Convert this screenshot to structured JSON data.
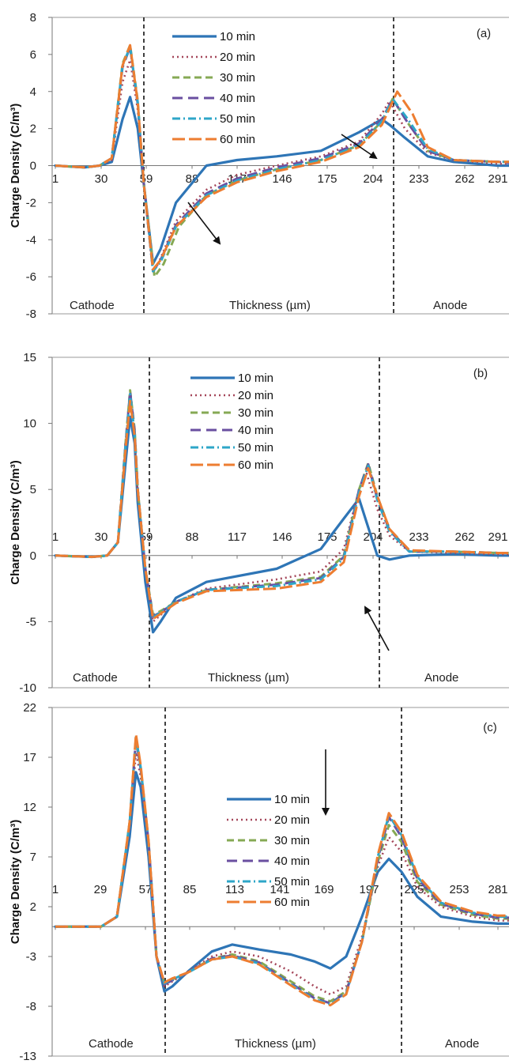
{
  "chart_data": [
    {
      "type": "line",
      "panel_label": "(a)",
      "ylabel": "Charge Density (C/m³)",
      "xlabel": "Thickness (µm)",
      "ylim": [
        -8,
        8
      ],
      "yticks": [
        "8",
        "6",
        "4",
        "2",
        "0",
        "-2",
        "-4",
        "-6",
        "-8"
      ],
      "xticks": [
        "1",
        "30",
        "59",
        "88",
        "117",
        "146",
        "175",
        "204",
        "233",
        "262",
        "291"
      ],
      "region_labels": {
        "left": "Cathode",
        "right": "Anode"
      },
      "series": [
        {
          "name": "10 min",
          "x": [
            1,
            20,
            30,
            38,
            45,
            50,
            55,
            59,
            65,
            70,
            80,
            100,
            120,
            146,
            175,
            200,
            215,
            220,
            230,
            245,
            262,
            291,
            303
          ],
          "y": [
            0,
            -0.1,
            0,
            0.2,
            2.5,
            3.7,
            2,
            -1,
            -5.3,
            -4.5,
            -2,
            0,
            0.3,
            0.5,
            0.8,
            1.8,
            2.5,
            2.2,
            1.5,
            0.5,
            0.2,
            0,
            0
          ]
        },
        {
          "name": "20 min",
          "x": [
            1,
            20,
            30,
            38,
            45,
            50,
            55,
            59,
            65,
            70,
            80,
            100,
            120,
            146,
            175,
            200,
            215,
            220,
            230,
            245,
            262,
            291,
            303
          ],
          "y": [
            0,
            -0.1,
            0,
            0.3,
            4.5,
            5.7,
            3,
            -1,
            -5.8,
            -5,
            -3,
            -1.3,
            -0.5,
            0,
            0.5,
            1.3,
            2.8,
            3.5,
            2,
            0.7,
            0.3,
            0.1,
            0.1
          ]
        },
        {
          "name": "30 min",
          "x": [
            1,
            20,
            30,
            38,
            45,
            50,
            55,
            59,
            66,
            72,
            82,
            100,
            120,
            146,
            175,
            200,
            215,
            222,
            232,
            245,
            262,
            291,
            303
          ],
          "y": [
            0,
            -0.1,
            0,
            0.4,
            5.5,
            6.5,
            3.5,
            -1,
            -6,
            -5.3,
            -3.3,
            -1.6,
            -0.8,
            -0.2,
            0.3,
            1.1,
            2.4,
            3.6,
            2.3,
            0.8,
            0.3,
            0.2,
            0.2
          ]
        },
        {
          "name": "40 min",
          "x": [
            1,
            20,
            30,
            38,
            45,
            50,
            55,
            59,
            65,
            70,
            80,
            100,
            120,
            146,
            175,
            200,
            215,
            222,
            232,
            245,
            262,
            291,
            303
          ],
          "y": [
            0,
            -0.1,
            0,
            0.4,
            5.3,
            6.4,
            3.3,
            -1,
            -5.7,
            -5.1,
            -3.2,
            -1.5,
            -0.7,
            -0.1,
            0.4,
            1.2,
            2.5,
            3.6,
            2.3,
            0.8,
            0.3,
            0.2,
            0.1
          ]
        },
        {
          "name": "50 min",
          "x": [
            1,
            20,
            30,
            38,
            45,
            50,
            55,
            59,
            65,
            70,
            80,
            100,
            120,
            146,
            175,
            200,
            215,
            222,
            232,
            245,
            262,
            291,
            303
          ],
          "y": [
            0,
            -0.1,
            0,
            0.4,
            5.4,
            6.4,
            3.4,
            -1,
            -5.7,
            -5.2,
            -3.3,
            -1.6,
            -0.8,
            -0.2,
            0.3,
            1.1,
            2.4,
            3.6,
            2.5,
            0.9,
            0.3,
            0.2,
            0.2
          ]
        },
        {
          "name": "60 min",
          "x": [
            1,
            20,
            30,
            38,
            45,
            50,
            55,
            59,
            65,
            70,
            80,
            100,
            120,
            146,
            175,
            200,
            215,
            225,
            235,
            245,
            262,
            291,
            303
          ],
          "y": [
            0,
            -0.1,
            0,
            0.4,
            5.4,
            6.5,
            3.4,
            -1,
            -5.6,
            -5.1,
            -3.3,
            -1.7,
            -0.9,
            -0.3,
            0.2,
            1,
            2.2,
            4,
            2.8,
            1,
            0.3,
            0.2,
            0.2
          ]
        }
      ]
    },
    {
      "type": "line",
      "panel_label": "(b)",
      "ylabel": "Charge Density (C/m³)",
      "xlabel": "Thickness (µm)",
      "ylim": [
        -10,
        15
      ],
      "yticks": [
        "15",
        "10",
        "5",
        "0",
        "-5",
        "-10"
      ],
      "xticks": [
        "1",
        "30",
        "59",
        "88",
        "117",
        "146",
        "175",
        "204",
        "233",
        "262",
        "291"
      ],
      "region_labels": {
        "left": "Cathode",
        "right": "Anode"
      },
      "series": [
        {
          "name": "10 min",
          "x": [
            1,
            25,
            35,
            42,
            47,
            50,
            53,
            55,
            60,
            65,
            70,
            80,
            100,
            146,
            175,
            190,
            200,
            205,
            212,
            220,
            233,
            262,
            291,
            303
          ],
          "y": [
            0,
            -0.1,
            0,
            1,
            7,
            10.5,
            8.5,
            4,
            -2,
            -5.8,
            -5,
            -3.2,
            -2,
            -1,
            0.5,
            2.8,
            4.3,
            2.5,
            0,
            -0.3,
            0,
            0.1,
            0,
            0
          ]
        },
        {
          "name": "20 min",
          "x": [
            1,
            25,
            35,
            42,
            47,
            50,
            53,
            55,
            60,
            65,
            70,
            80,
            100,
            146,
            175,
            190,
            200,
            205,
            212,
            220,
            233,
            262,
            291,
            303
          ],
          "y": [
            0,
            -0.1,
            0,
            1,
            8,
            11.8,
            9,
            4.5,
            -1,
            -5,
            -4.5,
            -3.5,
            -2.5,
            -1.8,
            -1.2,
            0.5,
            5,
            6.2,
            3.5,
            1.5,
            0.3,
            0.2,
            0.1,
            0.1
          ]
        },
        {
          "name": "30 min",
          "x": [
            1,
            25,
            35,
            42,
            47,
            50,
            53,
            55,
            60,
            65,
            70,
            80,
            100,
            146,
            175,
            190,
            200,
            206,
            212,
            220,
            233,
            262,
            291,
            303
          ],
          "y": [
            0,
            -0.1,
            0,
            1,
            8.5,
            12.5,
            9.5,
            5,
            -1,
            -4.5,
            -4.2,
            -3.5,
            -2.6,
            -2.1,
            -1.6,
            0,
            5,
            7,
            4.5,
            2,
            0.3,
            0.3,
            0.2,
            0.2
          ]
        },
        {
          "name": "40 min",
          "x": [
            1,
            25,
            35,
            42,
            47,
            50,
            53,
            55,
            60,
            65,
            70,
            80,
            100,
            146,
            175,
            190,
            200,
            206,
            212,
            220,
            233,
            262,
            291,
            303
          ],
          "y": [
            0,
            -0.1,
            0,
            1,
            8.4,
            12.4,
            9.4,
            5,
            -1,
            -4.6,
            -4.3,
            -3.5,
            -2.6,
            -2.2,
            -1.7,
            -0.1,
            5,
            6.9,
            4.3,
            1.9,
            0.3,
            0.3,
            0.2,
            0.2
          ]
        },
        {
          "name": "50 min",
          "x": [
            1,
            25,
            35,
            42,
            47,
            50,
            53,
            55,
            60,
            65,
            70,
            80,
            100,
            146,
            175,
            190,
            200,
            206,
            212,
            220,
            233,
            262,
            291,
            303
          ],
          "y": [
            0,
            -0.1,
            0,
            1,
            8.3,
            12.2,
            9.2,
            5,
            -1,
            -4.7,
            -4.3,
            -3.5,
            -2.6,
            -2.3,
            -1.8,
            -0.2,
            4.8,
            6.8,
            4.2,
            1.8,
            0.3,
            0.3,
            0.2,
            0.2
          ]
        },
        {
          "name": "60 min",
          "x": [
            1,
            25,
            35,
            42,
            47,
            50,
            53,
            55,
            60,
            65,
            70,
            80,
            100,
            146,
            175,
            190,
            200,
            206,
            212,
            220,
            233,
            262,
            291,
            303
          ],
          "y": [
            0,
            -0.1,
            0,
            1,
            8,
            11.7,
            9,
            5,
            -1,
            -4.8,
            -4.4,
            -3.6,
            -2.7,
            -2.5,
            -2,
            -0.5,
            4.5,
            6.6,
            4.5,
            2,
            0.4,
            0.3,
            0.2,
            0.2
          ]
        }
      ]
    },
    {
      "type": "line",
      "panel_label": "(c)",
      "ylabel": "Charge Density (C/m³)",
      "xlabel": "Thickness (µm)",
      "ylim": [
        -13,
        22
      ],
      "yticks": [
        "22",
        "17",
        "12",
        "7",
        "2",
        "-3",
        "-8",
        "-13"
      ],
      "xticks": [
        "1",
        "29",
        "57",
        "85",
        "113",
        "141",
        "169",
        "197",
        "225",
        "253",
        "281"
      ],
      "region_labels": {
        "left": "Cathode",
        "right": "Anode"
      },
      "series": [
        {
          "name": "10 min",
          "x": [
            1,
            20,
            30,
            40,
            48,
            52,
            55,
            60,
            65,
            70,
            75,
            85,
            100,
            113,
            130,
            150,
            165,
            175,
            185,
            195,
            205,
            212,
            220,
            230,
            245,
            265,
            281,
            294
          ],
          "y": [
            0,
            0,
            0,
            1,
            9,
            15.5,
            14,
            7,
            -3,
            -6.5,
            -6,
            -4.5,
            -2.5,
            -1.8,
            -2.3,
            -2.8,
            -3.5,
            -4.2,
            -3,
            1,
            5.5,
            6.8,
            5.5,
            3,
            1,
            0.5,
            0.3,
            0.3
          ]
        },
        {
          "name": "20 min",
          "x": [
            1,
            20,
            30,
            40,
            48,
            52,
            55,
            60,
            65,
            70,
            75,
            85,
            100,
            113,
            130,
            150,
            165,
            175,
            185,
            195,
            205,
            212,
            220,
            230,
            245,
            265,
            281,
            294
          ],
          "y": [
            0,
            0,
            0,
            1,
            10,
            17.5,
            15,
            8,
            -3,
            -6,
            -5.5,
            -4.5,
            -3,
            -2.5,
            -3,
            -4.5,
            -6,
            -6.8,
            -6,
            -1,
            6,
            9,
            7.5,
            4,
            2,
            1,
            0.6,
            0.6
          ]
        },
        {
          "name": "30 min",
          "x": [
            1,
            20,
            30,
            40,
            48,
            52,
            55,
            60,
            65,
            70,
            75,
            85,
            100,
            113,
            130,
            150,
            165,
            175,
            185,
            195,
            205,
            212,
            220,
            230,
            245,
            265,
            281,
            294
          ],
          "y": [
            0,
            0,
            0,
            1,
            10.5,
            19,
            16,
            8.5,
            -3,
            -5.7,
            -5.3,
            -4.6,
            -3.2,
            -2.8,
            -3.5,
            -5.5,
            -7,
            -7.5,
            -6.5,
            -1.5,
            6.5,
            10.2,
            8.5,
            4.5,
            2.2,
            1.2,
            0.8,
            0.8
          ]
        },
        {
          "name": "40 min",
          "x": [
            1,
            20,
            30,
            40,
            48,
            52,
            55,
            60,
            65,
            70,
            75,
            85,
            100,
            113,
            130,
            150,
            165,
            175,
            185,
            195,
            205,
            212,
            220,
            230,
            245,
            265,
            281,
            294
          ],
          "y": [
            0,
            0,
            0,
            1,
            10.3,
            18.8,
            15.8,
            8.5,
            -3,
            -5.8,
            -5.4,
            -4.6,
            -3.2,
            -2.9,
            -3.6,
            -5.7,
            -7.2,
            -7.7,
            -6.6,
            -1.5,
            6.8,
            11,
            9,
            4.8,
            2.3,
            1.3,
            0.9,
            0.9
          ]
        },
        {
          "name": "50 min",
          "x": [
            1,
            20,
            30,
            40,
            48,
            52,
            55,
            60,
            65,
            70,
            75,
            85,
            100,
            113,
            130,
            150,
            165,
            175,
            185,
            195,
            205,
            212,
            220,
            230,
            245,
            265,
            281,
            294
          ],
          "y": [
            0,
            0,
            0,
            1,
            10.4,
            19,
            16,
            8.5,
            -3,
            -5.7,
            -5.3,
            -4.6,
            -3.3,
            -3,
            -3.7,
            -5.8,
            -7.3,
            -7.8,
            -6.7,
            -1.5,
            7,
            11.2,
            9.2,
            5,
            2.4,
            1.4,
            1,
            1
          ]
        },
        {
          "name": "60 min",
          "x": [
            1,
            20,
            30,
            40,
            48,
            52,
            55,
            60,
            65,
            70,
            75,
            85,
            100,
            113,
            130,
            150,
            165,
            175,
            185,
            195,
            205,
            212,
            220,
            230,
            245,
            265,
            281,
            294
          ],
          "y": [
            0,
            0,
            0,
            1,
            10.5,
            19.3,
            16.2,
            8.6,
            -3,
            -5.6,
            -5.2,
            -4.6,
            -3.3,
            -3,
            -3.8,
            -5.9,
            -7.4,
            -7.9,
            -6.8,
            -1.5,
            7.2,
            11.4,
            9.5,
            5.2,
            2.5,
            1.5,
            1.1,
            1.1
          ]
        }
      ]
    }
  ],
  "series_styles": [
    {
      "color": "#2e75b6",
      "dash": "",
      "width": 3.2
    },
    {
      "color": "#a5475a",
      "dash": "2 4",
      "width": 2.6
    },
    {
      "color": "#86a954",
      "dash": "9 5",
      "width": 3
    },
    {
      "color": "#6a4fa0",
      "dash": "13 7",
      "width": 3
    },
    {
      "color": "#2ea6c8",
      "dash": "10 4 2 4",
      "width": 3
    },
    {
      "color": "#ed7d31",
      "dash": "16 5",
      "width": 3
    }
  ]
}
